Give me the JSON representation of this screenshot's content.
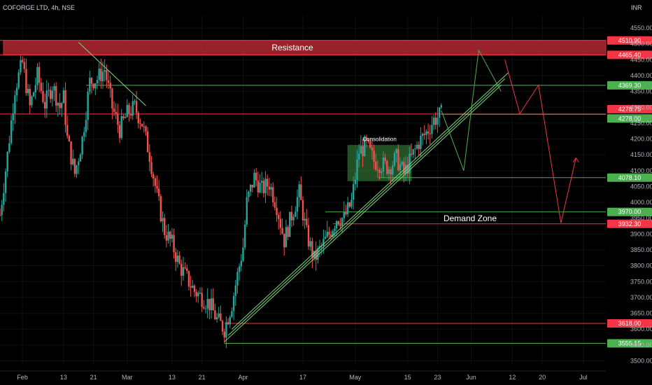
{
  "header": {
    "symbol": "COFORGE LTD, 4h, NSE",
    "currency": "INR"
  },
  "chart_data": {
    "type": "candlestick",
    "symbol": "COFORGE LTD",
    "interval": "4h",
    "exchange": "NSE",
    "currency": "INR",
    "ylim": [
      3490,
      4590
    ],
    "y_ticks": [
      3500,
      3550,
      3600,
      3650,
      3700,
      3750,
      3800,
      3850,
      3900,
      3950,
      4000,
      4050,
      4100,
      4150,
      4200,
      4250,
      4300,
      4350,
      4400,
      4450,
      4500,
      4550
    ],
    "x_ticks": [
      {
        "label": "Feb",
        "x": 0
      },
      {
        "label": "13",
        "x": 11
      },
      {
        "label": "21",
        "x": 19
      },
      {
        "label": "Mar",
        "x": 28
      },
      {
        "label": "13",
        "x": 40
      },
      {
        "label": "21",
        "x": 48
      },
      {
        "label": "Apr",
        "x": 59
      },
      {
        "label": "17",
        "x": 75
      },
      {
        "label": "May",
        "x": 89
      },
      {
        "label": "15",
        "x": 103
      },
      {
        "label": "23",
        "x": 111
      },
      {
        "label": "Jun",
        "x": 120
      },
      {
        "label": "12",
        "x": 131
      },
      {
        "label": "20",
        "x": 139
      },
      {
        "label": "Jul",
        "x": 150
      }
    ],
    "x_range": [
      -6,
      156
    ],
    "price_path": [
      [
        -6,
        3960
      ],
      [
        -4,
        4150
      ],
      [
        -2,
        4360
      ],
      [
        0,
        4440
      ],
      [
        2,
        4300
      ],
      [
        4,
        4400
      ],
      [
        6,
        4310
      ],
      [
        8,
        4370
      ],
      [
        10,
        4300
      ],
      [
        11,
        4330
      ],
      [
        12,
        4200
      ],
      [
        14,
        4090
      ],
      [
        16,
        4200
      ],
      [
        18,
        4380
      ],
      [
        20,
        4390
      ],
      [
        22,
        4420
      ],
      [
        24,
        4300
      ],
      [
        26,
        4230
      ],
      [
        28,
        4280
      ],
      [
        30,
        4300
      ],
      [
        32,
        4250
      ],
      [
        34,
        4150
      ],
      [
        36,
        4020
      ],
      [
        38,
        3910
      ],
      [
        40,
        3870
      ],
      [
        42,
        3800
      ],
      [
        44,
        3760
      ],
      [
        46,
        3720
      ],
      [
        48,
        3700
      ],
      [
        50,
        3680
      ],
      [
        52,
        3630
      ],
      [
        54,
        3600
      ],
      [
        56,
        3680
      ],
      [
        58,
        3800
      ],
      [
        59,
        3860
      ],
      [
        60,
        4000
      ],
      [
        62,
        4080
      ],
      [
        64,
        4040
      ],
      [
        66,
        4060
      ],
      [
        68,
        3990
      ],
      [
        70,
        3880
      ],
      [
        72,
        3960
      ],
      [
        74,
        4030
      ],
      [
        76,
        3900
      ],
      [
        78,
        3820
      ],
      [
        80,
        3860
      ],
      [
        82,
        3900
      ],
      [
        84,
        3950
      ],
      [
        86,
        3950
      ],
      [
        88,
        4000
      ],
      [
        89,
        4080
      ],
      [
        90,
        4160
      ],
      [
        92,
        4180
      ],
      [
        94,
        4130
      ],
      [
        96,
        4120
      ],
      [
        98,
        4110
      ],
      [
        100,
        4140
      ],
      [
        102,
        4090
      ],
      [
        104,
        4140
      ],
      [
        106,
        4190
      ],
      [
        108,
        4220
      ],
      [
        110,
        4260
      ],
      [
        112,
        4278
      ]
    ],
    "levels": [
      {
        "label": "4510.90",
        "value": 4510.9,
        "color": "#f23645"
      },
      {
        "label": "4465.40",
        "value": 4465.4,
        "color": "#f23645"
      },
      {
        "label": "4369.30",
        "value": 4369.3,
        "color": "#4caf50"
      },
      {
        "label": "4278.75",
        "value": 4278.75,
        "color": "#f23645"
      },
      {
        "label": "4278.00",
        "value": 4278.0,
        "color": "#4caf50"
      },
      {
        "label": "4078.10",
        "value": 4078.1,
        "color": "#4caf50"
      },
      {
        "label": "3970.00",
        "value": 3970.0,
        "color": "#4caf50"
      },
      {
        "label": "3932.30",
        "value": 3932.3,
        "color": "#f23645"
      },
      {
        "label": "3618.00",
        "value": 3618.0,
        "color": "#f23645"
      },
      {
        "label": "3555.15",
        "value": 3555.15,
        "color": "#4caf50"
      }
    ],
    "annotations": [
      {
        "text": "Resistance",
        "type": "zone",
        "y_top": 4510.9,
        "y_bottom": 4465.4,
        "color": "#b22833"
      },
      {
        "text": "Consolidation",
        "type": "box",
        "x0": 87,
        "x1": 104,
        "y_top": 4180,
        "y_bottom": 4068,
        "color": "#4caf50"
      },
      {
        "text": "Demand Zone",
        "type": "zone",
        "y_top": 3970.0,
        "y_bottom": 3932.3,
        "color": "#ffffff"
      }
    ],
    "projections": [
      {
        "color": "#4caf50",
        "points": [
          [
            112,
            4290
          ],
          [
            118,
            4100
          ],
          [
            122,
            4480
          ],
          [
            128,
            4350
          ]
        ]
      },
      {
        "color": "#f23645",
        "points": [
          [
            129,
            4450
          ],
          [
            133,
            4280
          ],
          [
            138,
            4370
          ],
          [
            144,
            3935
          ],
          [
            148,
            4140
          ]
        ]
      }
    ],
    "colors": {
      "up": "#26a69a",
      "down": "#ef5350",
      "background": "#000000"
    }
  }
}
